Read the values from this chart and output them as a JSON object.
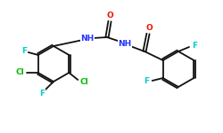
{
  "bg_color": "#ffffff",
  "bond_color": "#111111",
  "atom_colors": {
    "F": "#00cccc",
    "Cl": "#00bb00",
    "O": "#ee1100",
    "N": "#2233ff",
    "C": "#111111"
  }
}
